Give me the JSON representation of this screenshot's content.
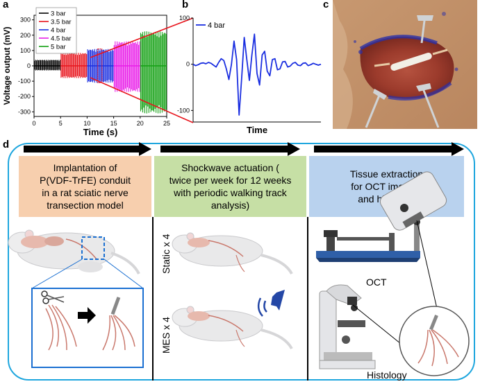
{
  "panels": {
    "a": "a",
    "b": "b",
    "c": "c",
    "d": "d"
  },
  "colors": {
    "bar3": "#000000",
    "bar35": "#e8141c",
    "bar4": "#1a2ee0",
    "bar45": "#e81ce8",
    "bar5": "#12a012",
    "stage1": "#f7cfae",
    "stage2": "#c6dfa5",
    "stage3": "#b9d2ee",
    "frame": "#1ea6de",
    "nerve": "#c9776b",
    "speaker": "#2447a6"
  },
  "chart_data": [
    {
      "type": "line",
      "panel": "a",
      "xlabel": "Time (s)",
      "ylabel": "Voltage output (mV)",
      "xlim": [
        0,
        25
      ],
      "ylim": [
        -330,
        330
      ],
      "xticks": [
        0,
        5,
        10,
        15,
        20,
        25
      ],
      "yticks": [
        -300,
        -200,
        -100,
        0,
        100,
        200,
        300
      ],
      "legend_position": "top-left",
      "series": [
        {
          "name": "3 bar",
          "x_range": [
            0,
            5
          ],
          "amplitude_pos": 40,
          "amplitude_neg": -30
        },
        {
          "name": "3.5 bar",
          "x_range": [
            5,
            10
          ],
          "amplitude_pos": 85,
          "amplitude_neg": -80
        },
        {
          "name": "4 bar",
          "x_range": [
            10,
            15
          ],
          "amplitude_pos": 110,
          "amplitude_neg": -110
        },
        {
          "name": "4.5 bar",
          "x_range": [
            15,
            20
          ],
          "amplitude_pos": 160,
          "amplitude_neg": -170
        },
        {
          "name": "5 bar",
          "x_range": [
            20,
            25
          ],
          "amplitude_pos": 225,
          "amplitude_neg": -310
        }
      ]
    },
    {
      "type": "line",
      "panel": "b",
      "xlabel": "Time",
      "ylabel": "",
      "ylim": [
        -125,
        100
      ],
      "yticks": [
        -100,
        0,
        100
      ],
      "legend_position": "top-left",
      "series": [
        {
          "name": "4 bar",
          "x": [
            0,
            2,
            4,
            6,
            8,
            10,
            12,
            14,
            16,
            18,
            20,
            22,
            24,
            26,
            28,
            30,
            32,
            34,
            36,
            38,
            40,
            42,
            44,
            46,
            48,
            50,
            52,
            54,
            56,
            58,
            60,
            62,
            64,
            66,
            68,
            70,
            72,
            74,
            76,
            78,
            80,
            82,
            84,
            86,
            88,
            90,
            92,
            94,
            96,
            98,
            100
          ],
          "values": [
            0,
            -3,
            -1,
            2,
            3,
            1,
            4,
            2,
            -2,
            -6,
            4,
            12,
            8,
            -10,
            -33,
            0,
            50,
            10,
            -110,
            -30,
            58,
            10,
            -35,
            20,
            65,
            -20,
            -45,
            20,
            28,
            -15,
            -25,
            10,
            12,
            -12,
            -10,
            5,
            6,
            -6,
            -4,
            2,
            4,
            -2,
            -3,
            2,
            3,
            -3,
            -1,
            2,
            0,
            -2,
            0
          ]
        }
      ]
    }
  ],
  "photo": {
    "alt": "Surgical photograph of conduit implanted in rat sciatic nerve"
  },
  "stages": [
    {
      "text": "Implantation of\nP(VDF-TrFE) conduit\nin a rat sciatic nerve\ntransection model"
    },
    {
      "text": "Shockwave actuation (\ntwice per week for 12 weeks\nwith periodic walking track\nanalysis)"
    },
    {
      "text": "Tissue extraction\nfor OCT imaging\nand histology"
    }
  ],
  "groups": {
    "static": "Static x 4",
    "mes": "MES x 4"
  },
  "labels": {
    "oct": "OCT",
    "histology": "Histology"
  }
}
